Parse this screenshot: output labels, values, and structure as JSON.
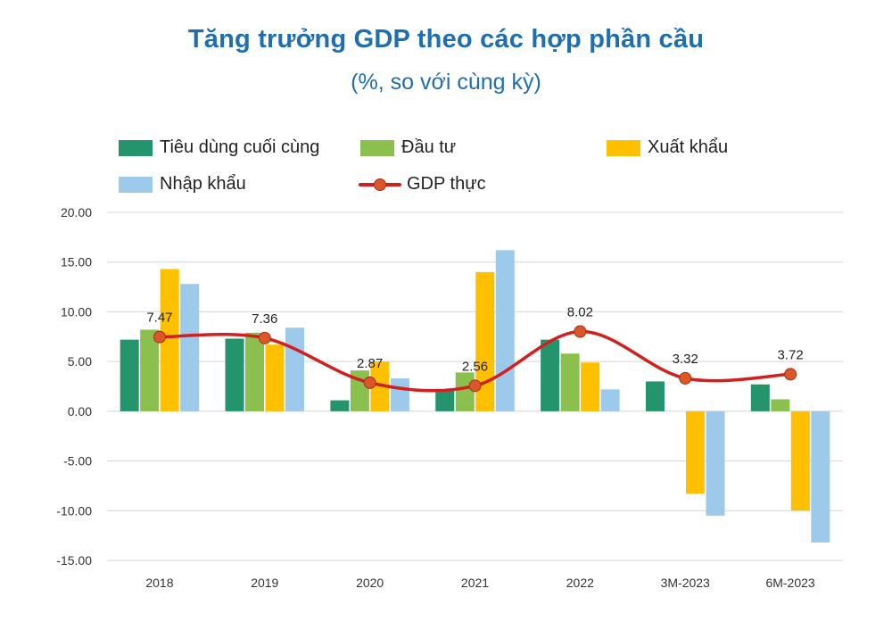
{
  "title": "Tăng trưởng GDP theo các hợp phần cầu",
  "subtitle": "(%, so với cùng kỳ)",
  "legend": {
    "consumption": "Tiêu dùng cuối cùng",
    "investment": "Đầu tư",
    "export": "Xuất khẩu",
    "import": "Nhập khẩu",
    "gdp": "GDP thực"
  },
  "colors": {
    "consumption": "#23946b",
    "investment": "#8cc04e",
    "export": "#ffc000",
    "import": "#9dc9ea",
    "gdp": "#d21f1f",
    "title": "#1f6fb0"
  },
  "chart_data": {
    "type": "bar",
    "categories": [
      "2018",
      "2019",
      "2020",
      "2021",
      "2022",
      "3M-2023",
      "6M-2023"
    ],
    "series": [
      {
        "name": "Tiêu dùng cuối cùng",
        "type": "bar",
        "values": [
          7.2,
          7.3,
          1.1,
          2.1,
          7.2,
          3.0,
          2.7
        ]
      },
      {
        "name": "Đầu tư",
        "type": "bar",
        "values": [
          8.2,
          7.9,
          4.1,
          3.9,
          5.8,
          0.0,
          1.2
        ]
      },
      {
        "name": "Xuất khẩu",
        "type": "bar",
        "values": [
          14.3,
          6.7,
          5.0,
          14.0,
          4.9,
          -8.3,
          -10.0
        ]
      },
      {
        "name": "Nhập khẩu",
        "type": "bar",
        "values": [
          12.8,
          8.4,
          3.3,
          16.2,
          2.2,
          -10.5,
          -13.2
        ]
      },
      {
        "name": "GDP thực",
        "type": "line",
        "values": [
          7.47,
          7.36,
          2.87,
          2.56,
          8.02,
          3.32,
          3.72
        ],
        "labels": [
          "7.47",
          "7.36",
          "2.87",
          "2.56",
          "8.02",
          "3.32",
          "3.72"
        ]
      }
    ],
    "ylim": [
      -15,
      20
    ],
    "yticks": [
      20,
      15,
      10,
      5,
      0,
      -5,
      -10,
      -15
    ],
    "ytick_labels": [
      "20.00",
      "15.00",
      "10.00",
      "5.00",
      "0.00",
      "-5.00",
      "-10.00",
      "-15.00"
    ],
    "grid": true,
    "legend_position": "top"
  }
}
